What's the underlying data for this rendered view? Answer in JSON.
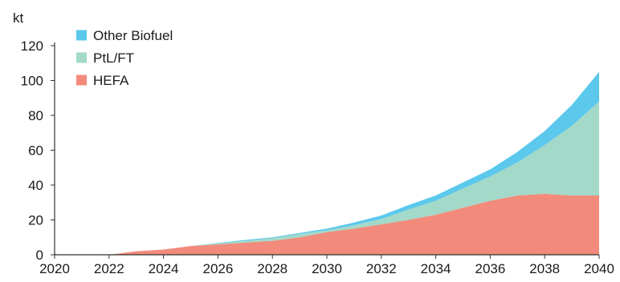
{
  "chart_data": {
    "type": "area",
    "stacked": true,
    "unit_label": "kt",
    "x": [
      2020,
      2021,
      2022,
      2023,
      2024,
      2025,
      2026,
      2027,
      2028,
      2029,
      2030,
      2031,
      2032,
      2033,
      2034,
      2035,
      2036,
      2037,
      2038,
      2039,
      2040
    ],
    "x_ticks": [
      "2020",
      "2022",
      "2024",
      "2026",
      "2028",
      "2030",
      "2032",
      "2034",
      "2036",
      "2038",
      "2040"
    ],
    "y_ticks": [
      "0",
      "20",
      "40",
      "60",
      "80",
      "100",
      "120"
    ],
    "ylim": [
      0,
      120
    ],
    "xlim": [
      2020,
      2040
    ],
    "grid": false,
    "legend_position": "top-left",
    "series": [
      {
        "name": "HEFA",
        "color": "#f28b7b",
        "values": [
          0,
          0,
          0,
          2,
          3,
          5,
          6,
          7,
          8,
          10,
          13,
          15,
          17.5,
          20,
          23,
          27,
          31,
          34,
          35,
          34,
          34
        ]
      },
      {
        "name": "PtL/FT",
        "color": "#a3d9c9",
        "values": [
          0,
          0,
          0,
          0,
          0,
          0,
          0.5,
          1,
          1.5,
          2,
          1,
          2,
          3,
          6,
          8,
          11,
          14,
          19,
          28,
          40,
          54
        ]
      },
      {
        "name": "Other Biofuel",
        "color": "#5bc8ec",
        "values": [
          0,
          0,
          0,
          0,
          0,
          0,
          0.3,
          0.5,
          0.5,
          0.5,
          1,
          1.5,
          2,
          2.5,
          3,
          3.5,
          4,
          6,
          8,
          12,
          17
        ]
      }
    ],
    "legend_order": [
      "Other Biofuel",
      "PtL/FT",
      "HEFA"
    ]
  }
}
